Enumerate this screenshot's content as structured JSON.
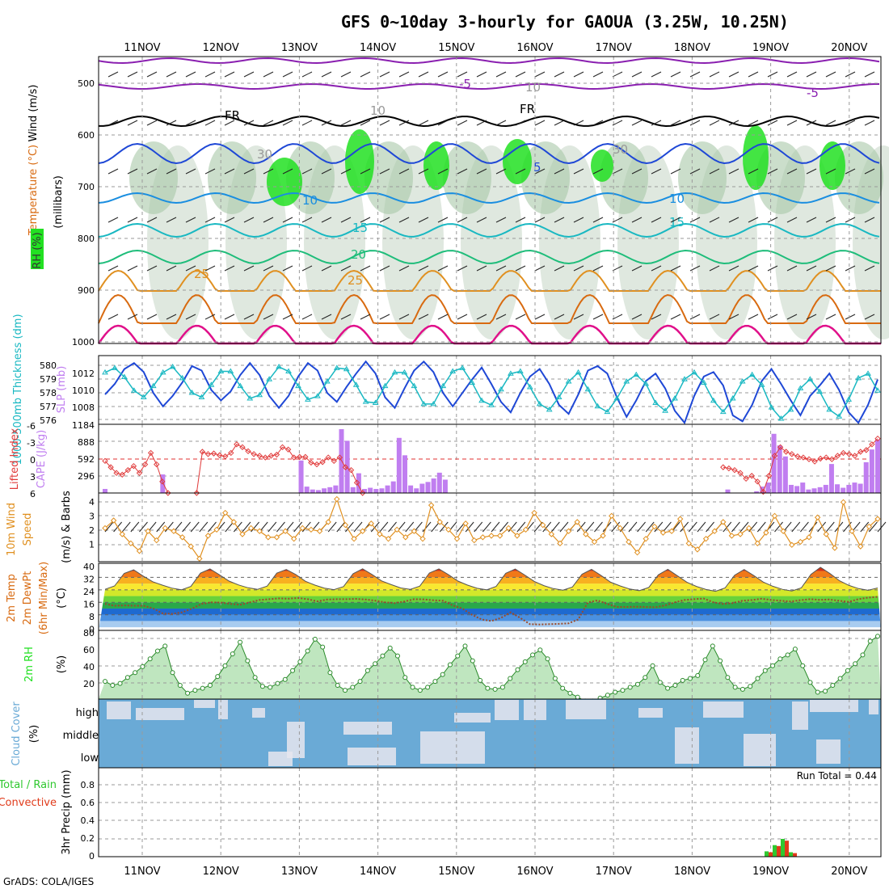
{
  "title": "GFS 0~10day 3-hourly for GAOUA (3.25W, 10.25N)",
  "footer": "GrADS: COLA/IGES",
  "dates": [
    "11NOV",
    "12NOV",
    "13NOV",
    "14NOV",
    "15NOV",
    "16NOV",
    "17NOV",
    "18NOV",
    "19NOV",
    "20NOV"
  ],
  "colors": {
    "grid": "#9a9a9a",
    "purple": "#8a1fb0",
    "blue": "#1f48d6",
    "lightblue": "#1a8ee0",
    "cyan": "#19b8c2",
    "teal": "#1ebd7a",
    "orange": "#e09020",
    "darkorange": "#d86a10",
    "magenta": "#e0108a",
    "green": "#22e022",
    "cape": "#c07ef0",
    "cloud": "#6aaad6",
    "precip_total": "#2fc82f",
    "precip_conv": "#e03a1a"
  },
  "panels": {
    "upper_air": {
      "ylabel": "(millibars)",
      "legend_wind": "Wind (m/s)",
      "legend_temp": "Temperature (°C)",
      "legend_rh": "RH (%)",
      "levels": [
        "500",
        "600",
        "700",
        "800",
        "900",
        "1000"
      ],
      "contour_labels": [
        "-5",
        "-5",
        "FR",
        "FR",
        "5",
        "10",
        "10",
        "15",
        "15",
        "20",
        "25",
        "25",
        "30",
        "30",
        "10",
        "10"
      ]
    },
    "thickness": {
      "ylabel_left": "1000-500mb Thickness (dm)",
      "ylabel_right": "SLP (mb)",
      "left_ticks": [
        "580",
        "579",
        "578",
        "577",
        "576"
      ],
      "right_ticks": [
        "1012",
        "1010",
        "1008"
      ]
    },
    "cape": {
      "ylabel_left": "Lifted Index",
      "ylabel_right": "CAPE (J/kg)",
      "left_ticks": [
        "-6",
        "-3",
        "0",
        "3",
        "6"
      ],
      "right_ticks": [
        "1184",
        "888",
        "592",
        "296"
      ]
    },
    "wind10m": {
      "ylabel": "10m Wind Speed & Barbs (m/s)",
      "ticks": [
        "4",
        "3",
        "2",
        "1"
      ]
    },
    "temp2m": {
      "ylabel": "2m Temp 2m DewPt (6hr Min/Max) (°C)",
      "ticks": [
        "40",
        "32",
        "24",
        "16",
        "8",
        "0"
      ]
    },
    "rh2m": {
      "ylabel": "2m RH (%)",
      "ticks": [
        "80",
        "60",
        "40",
        "20"
      ]
    },
    "cloud": {
      "ylabel": "Cloud Cover (%)",
      "levels": [
        "high",
        "middle",
        "low"
      ]
    },
    "precip": {
      "ylabel": "3hr Precip (mm)",
      "legend_total": "Total / Rain",
      "legend_conv": "Convective",
      "run_total": "Run Total = 0.44",
      "ticks": [
        "0.8",
        "0.6",
        "0.4",
        "0.2",
        "0"
      ]
    }
  },
  "chart_data": [
    {
      "type": "line",
      "title": "1000-500mb Thickness (dm) / SLP (mb)",
      "x": "3-hourly, 10NOV to 20NOV",
      "series": [
        {
          "name": "1000-500mb Thickness",
          "values": [
            577.7,
            578.4,
            579.4,
            579.8,
            579.2,
            577.8,
            576.9,
            577.6,
            578.5,
            579.6,
            579.3,
            578.0,
            577.3,
            577.9,
            579.0,
            579.8,
            579.0,
            577.6,
            576.8,
            577.6,
            578.9,
            579.8,
            579.3,
            577.8,
            577.2,
            578.2,
            579.1,
            579.9,
            579.1,
            577.5,
            576.8,
            578.1,
            579.3,
            579.9,
            579.2,
            577.8,
            576.9,
            577.8,
            578.7,
            579.5,
            578.4,
            577.2,
            576.5,
            577.8,
            578.9,
            579.4,
            578.4,
            577.0,
            576.4,
            577.7,
            579.3,
            579.6,
            579.1,
            577.5,
            576.2,
            577.3,
            578.6,
            579.1,
            578.1,
            576.6,
            575.8,
            577.6,
            578.9,
            579.2,
            578.3,
            576.3,
            575.9,
            577.0,
            578.6,
            579.4,
            578.4,
            577.3,
            576.3,
            577.6,
            578.3,
            579.1,
            578.0,
            576.5,
            575.8,
            577.0,
            578.7
          ]
        },
        {
          "name": "SLP",
          "values": [
            1011.8,
            1012.2,
            1011.4,
            1010.2,
            1009.6,
            1010.6,
            1011.8,
            1012.3,
            1011.3,
            1010.0,
            1009.6,
            1010.7,
            1011.9,
            1011.9,
            1010.6,
            1009.5,
            1009.8,
            1011.2,
            1012.3,
            1011.9,
            1010.6,
            1009.4,
            1009.7,
            1011.0,
            1012.2,
            1012.1,
            1010.7,
            1009.2,
            1009.1,
            1010.6,
            1011.8,
            1011.8,
            1010.6,
            1009.0,
            1009.0,
            1010.6,
            1011.9,
            1012.2,
            1010.9,
            1009.3,
            1008.9,
            1010.3,
            1011.7,
            1011.9,
            1010.5,
            1009.0,
            1008.5,
            1009.6,
            1011.0,
            1011.8,
            1010.3,
            1008.8,
            1008.3,
            1009.5,
            1011.0,
            1011.6,
            1010.8,
            1009.1,
            1008.4,
            1009.5,
            1011.2,
            1011.8,
            1010.9,
            1009.3,
            1008.3,
            1009.5,
            1011.0,
            1011.6,
            1010.7,
            1008.7,
            1007.7,
            1008.5,
            1010.4,
            1011.2,
            1010.1,
            1008.5,
            1007.9,
            1009.4,
            1011.3,
            1011.7,
            1010.2
          ]
        }
      ],
      "ylim_left": [
        575.7,
        580.3
      ],
      "ylim_right": [
        1007.2,
        1013.3
      ]
    },
    {
      "type": "bar",
      "title": "Lifted Index / CAPE (J/kg)",
      "series": [
        {
          "name": "CAPE",
          "values": [
            70,
            0,
            0,
            0,
            0,
            0,
            0,
            0,
            0,
            0,
            320,
            0,
            0,
            0,
            0,
            0,
            0,
            0,
            0,
            0,
            0,
            0,
            0,
            0,
            0,
            0,
            0,
            0,
            0,
            0,
            0,
            0,
            0,
            0,
            560,
            110,
            60,
            50,
            80,
            100,
            130,
            1100,
            900,
            100,
            340,
            70,
            90,
            70,
            80,
            130,
            200,
            950,
            650,
            130,
            80,
            160,
            190,
            250,
            350,
            230,
            0,
            0,
            0,
            0,
            0,
            0,
            0,
            0,
            0,
            0,
            0,
            0,
            0,
            0,
            0,
            0,
            0,
            0,
            0,
            0,
            0,
            0,
            0,
            0,
            0,
            0,
            0,
            0,
            0,
            0,
            0,
            0,
            0,
            0,
            0,
            0,
            0,
            0,
            0,
            0,
            0,
            0,
            0,
            0,
            0,
            0,
            0,
            0,
            60,
            0,
            0,
            0,
            0,
            30,
            110,
            180,
            1020,
            820,
            630,
            140,
            120,
            180,
            60,
            80,
            100,
            140,
            500,
            150,
            90,
            140,
            180,
            160,
            530,
            750,
            920
          ]
        },
        {
          "name": "Lifted Index",
          "values": [
            0.4,
            1.5,
            2.5,
            2.8,
            2.0,
            1.3,
            2.5,
            1.0,
            -1.0,
            1.0,
            4.0,
            6.0,
            null,
            null,
            null,
            null,
            6.0,
            -1.2,
            -0.8,
            -0.9,
            -0.6,
            -0.4,
            -1.0,
            -2.5,
            -2.0,
            -1.3,
            -0.8,
            -0.5,
            -0.2,
            -0.5,
            -0.7,
            -2.0,
            -1.6,
            -0.2,
            -0.3,
            -0.3,
            0.7,
            1.0,
            0.6,
            -0.2,
            0.4,
            -0.2,
            1.5,
            2.0,
            4.2,
            6.0,
            null,
            null,
            null,
            null,
            null,
            null,
            null,
            null,
            null,
            null,
            null,
            null,
            null,
            null,
            null,
            null,
            null,
            null,
            null,
            null,
            null,
            null,
            null,
            null,
            null,
            null,
            null,
            null,
            null,
            null,
            null,
            null,
            null,
            null,
            null,
            null,
            null,
            null,
            null,
            null,
            null,
            null,
            null,
            null,
            null,
            null,
            null,
            null,
            null,
            null,
            null,
            null,
            null,
            null,
            null,
            null,
            null,
            null,
            null,
            null,
            null,
            null,
            1.5,
            1.7,
            2.0,
            2.5,
            3.5,
            3.0,
            4.0,
            5.8,
            3.0,
            -0.5,
            -2.0,
            -1.2,
            -0.8,
            -0.4,
            -0.2,
            0.1,
            0.5,
            0.0,
            -0.2,
            0.1,
            -0.5,
            -1.0,
            -0.8,
            -0.5,
            -1.2,
            -1.5,
            -2.5,
            -3.5
          ]
        }
      ],
      "ylim_left": [
        6,
        -6
      ],
      "ylim_right": [
        0,
        1184
      ]
    },
    {
      "type": "line",
      "title": "10m Wind Speed (m/s)",
      "series": [
        {
          "name": "10m Wind Speed",
          "values": [
            2.2,
            2.7,
            1.8,
            1.2,
            0.7,
            2.0,
            1.4,
            2.2,
            2.0,
            1.6,
            1.0,
            0.2,
            1.7,
            2.1,
            3.2,
            2.6,
            1.8,
            2.2,
            2.0,
            1.6,
            1.6,
            2.0,
            1.5,
            2.2,
            2.1,
            2.0,
            2.6,
            4.1,
            2.4,
            1.5,
            2.0,
            2.5,
            1.8,
            1.5,
            2.1,
            1.6,
            2.0,
            1.5,
            3.7,
            2.6,
            2.1,
            1.5,
            2.5,
            1.4,
            1.6,
            1.7,
            1.7,
            2.2,
            1.7,
            2.1,
            3.2,
            2.4,
            1.8,
            1.2,
            2.0,
            2.6,
            1.8,
            1.3,
            1.7,
            3.0,
            2.2,
            1.3,
            0.6,
            1.5,
            2.3,
            1.9,
            2.0,
            2.8,
            1.2,
            0.8,
            1.5,
            2.0,
            2.6,
            1.7,
            1.8,
            2.2,
            1.2,
            1.9,
            3.0,
            2.0,
            1.1,
            1.3,
            1.6,
            2.9,
            1.8,
            0.9,
            3.9,
            2.0,
            1.0,
            2.3,
            2.8
          ]
        }
      ],
      "ylim": [
        0,
        4.5
      ]
    },
    {
      "type": "area",
      "title": "2m Temp / 2m DewPt (°C)",
      "series": [
        {
          "name": "2m Temp",
          "values": [
            24.3,
            26.5,
            34.5,
            36.8,
            32.8,
            29.2,
            27.0,
            25.1,
            24.0,
            26.2,
            34.7,
            37.4,
            33.6,
            29.6,
            27.1,
            25.3,
            24.3,
            26.4,
            34.7,
            37.0,
            33.8,
            29.5,
            27.0,
            25.1,
            24.1,
            26.1,
            34.3,
            37.5,
            33.8,
            29.7,
            27.3,
            25.2,
            24.3,
            26.4,
            34.8,
            37.4,
            33.7,
            29.6,
            27.0,
            25.0,
            24.0,
            26.2,
            34.6,
            37.3,
            33.5,
            29.4,
            26.7,
            24.8,
            23.8,
            25.8,
            34.0,
            37.1,
            33.2,
            28.9,
            26.5,
            24.5,
            23.5,
            25.5,
            33.6,
            37.1,
            33.0,
            28.9,
            26.2,
            24.2,
            23.1,
            25.2,
            33.4,
            37.0,
            33.2,
            29.0,
            26.3,
            24.3,
            23.3,
            25.3,
            33.9,
            38.4,
            34.4,
            29.8,
            26.8,
            24.8,
            23.7,
            25.2
          ]
        },
        {
          "name": "2m DewPt",
          "values": [
            15.0,
            13.8,
            14.0,
            13.8,
            13.8,
            12.0,
            8.8,
            8.6,
            9.6,
            12.0,
            15.0,
            16.0,
            15.8,
            15.0,
            14.4,
            16.0,
            17.5,
            18.0,
            18.5,
            18.3,
            18.8,
            18.0,
            16.6,
            17.8,
            18.0,
            18.0,
            18.2,
            17.8,
            17.0,
            16.0,
            15.5,
            16.5,
            18.0,
            17.9,
            17.3,
            17.0,
            14.0,
            12.0,
            8.0,
            5.0,
            4.0,
            6.0,
            9.6,
            6.0,
            2.0,
            1.8,
            2.0,
            2.2,
            2.5,
            5.0,
            16.0,
            17.2,
            15.0,
            13.0,
            13.0,
            13.2,
            13.0,
            12.8,
            14.0,
            16.0,
            17.5,
            18.0,
            18.4,
            16.0,
            15.0,
            15.5,
            17.0,
            17.5,
            18.3,
            17.5,
            17.0,
            16.5,
            17.4,
            18.0,
            17.6,
            17.8,
            17.0,
            16.3,
            18.0,
            19.0,
            19.5
          ]
        }
      ],
      "ylim": [
        -2,
        41
      ]
    },
    {
      "type": "area",
      "title": "2m RH (%)",
      "series": [
        {
          "name": "2m RH",
          "values": [
            29,
            25,
            27,
            33,
            38,
            44,
            52,
            60,
            65,
            38,
            25,
            17,
            20,
            22,
            25,
            34,
            45,
            57,
            69,
            50,
            33,
            24,
            23,
            27,
            31,
            40,
            49,
            60,
            72,
            64,
            38,
            25,
            20,
            23,
            29,
            40,
            47,
            55,
            63,
            55,
            33,
            23,
            20,
            23,
            29,
            36,
            46,
            55,
            65,
            50,
            30,
            22,
            21,
            23,
            32,
            41,
            49,
            56,
            61,
            52,
            32,
            22,
            17,
            13,
            9,
            9,
            12,
            15,
            18,
            20,
            23,
            26,
            33,
            45,
            28,
            22,
            25,
            30,
            32,
            35,
            51,
            65,
            50,
            33,
            23,
            21,
            24,
            32,
            40,
            45,
            52,
            56,
            62,
            45,
            28,
            18,
            19,
            25,
            32,
            40,
            47,
            56,
            70,
            75
          ]
        }
      ],
      "ylim": [
        11,
        81
      ]
    },
    {
      "type": "heatmap",
      "title": "Cloud Cover (%)",
      "y": [
        "high",
        "middle",
        "low"
      ],
      "note": "mostly overcast high/middle cloud with intermittent clear gaps"
    },
    {
      "type": "bar",
      "title": "3hr Precip (mm)",
      "run_total": 0.44,
      "series": [
        {
          "name": "Total / Rain",
          "values": [
            0.06,
            0.13,
            0.2,
            0.05
          ]
        },
        {
          "name": "Convective",
          "values": [
            0.05,
            0.12,
            0.18,
            0.04
          ]
        }
      ],
      "x": [
        "19NOV 00Z",
        "19NOV 03Z",
        "19NOV 06Z",
        "19NOV 09Z"
      ],
      "ylim": [
        0,
        1.0
      ]
    }
  ]
}
